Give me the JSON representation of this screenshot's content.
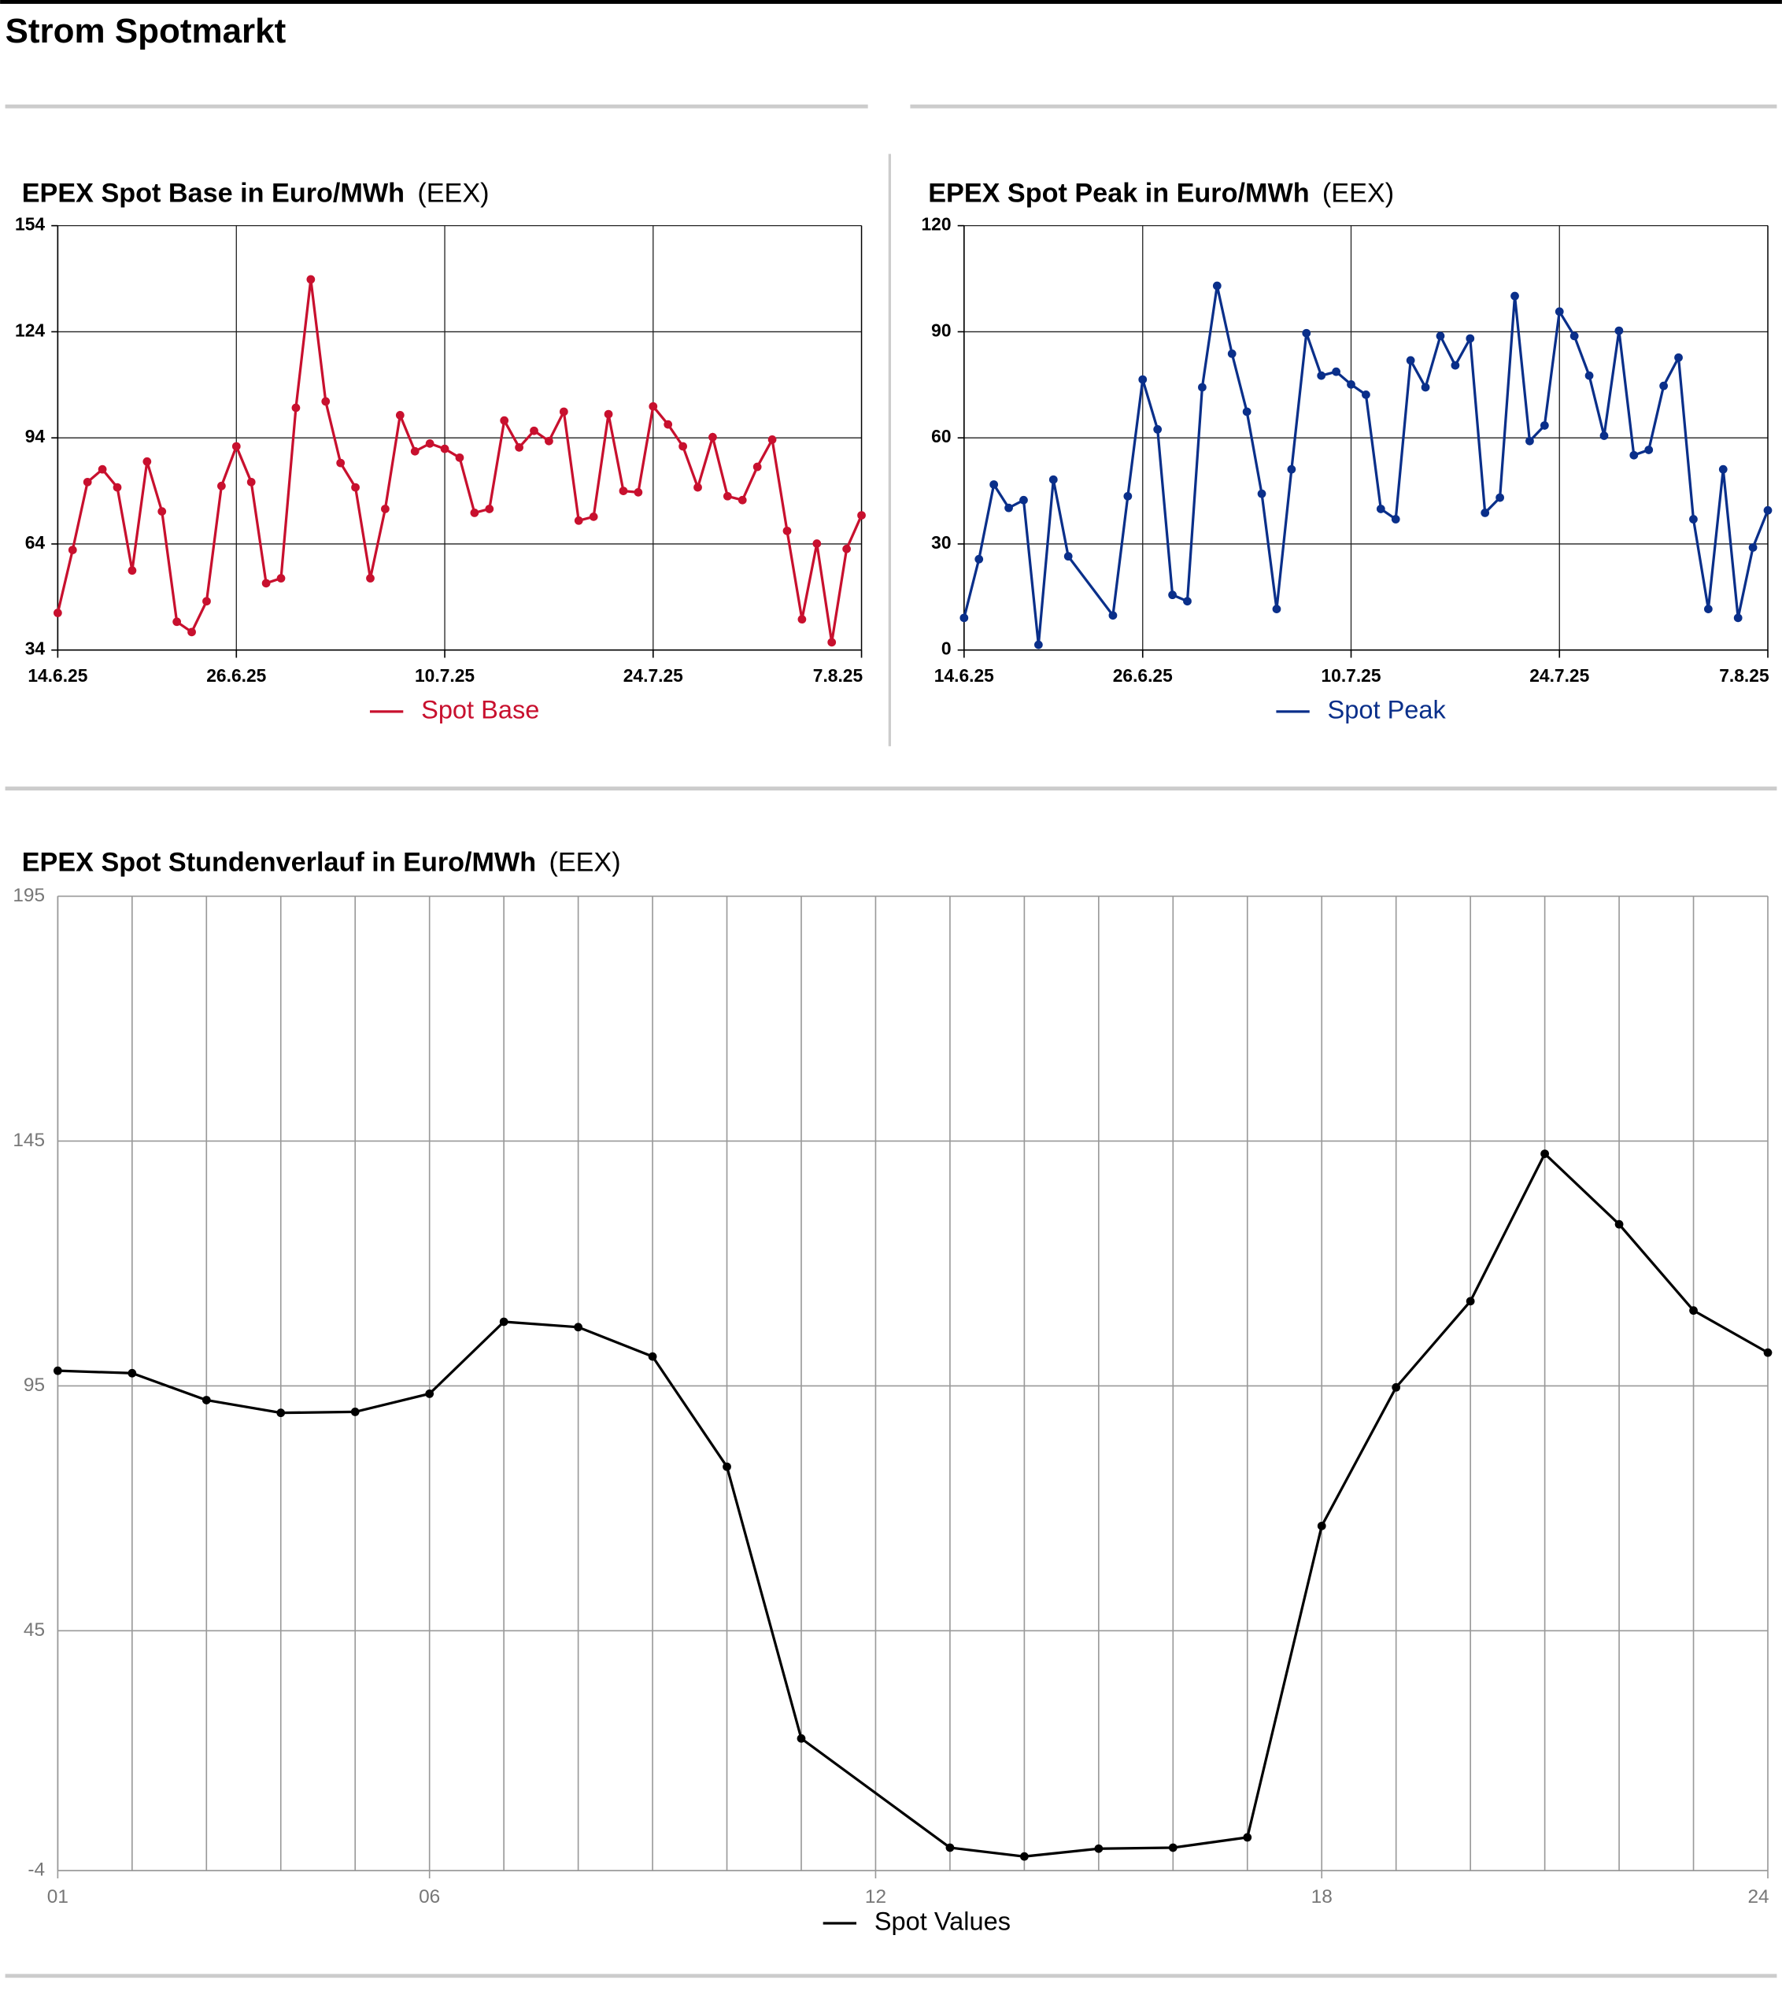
{
  "header": {
    "title": "Strom Spotmarkt"
  },
  "chart_data": [
    {
      "type": "line",
      "title": "EPEX Spot Base in Euro/MWh",
      "subtitle": "(EEX)",
      "x": [
        "14.6.25",
        "15.6.25",
        "16.6.25",
        "17.6.25",
        "18.6.25",
        "19.6.25",
        "20.6.25",
        "21.6.25",
        "22.6.25",
        "23.6.25",
        "24.6.25",
        "25.6.25",
        "26.6.25",
        "27.6.25",
        "28.6.25",
        "29.6.25",
        "30.6.25",
        "1.7.25",
        "2.7.25",
        "3.7.25",
        "4.7.25",
        "5.7.25",
        "6.7.25",
        "7.7.25",
        "8.7.25",
        "9.7.25",
        "10.7.25",
        "11.7.25",
        "12.7.25",
        "13.7.25",
        "14.7.25",
        "15.7.25",
        "16.7.25",
        "17.7.25",
        "18.7.25",
        "19.7.25",
        "20.7.25",
        "21.7.25",
        "22.7.25",
        "23.7.25",
        "24.7.25",
        "25.7.25",
        "26.7.25",
        "27.7.25",
        "28.7.25",
        "29.7.25",
        "30.7.25",
        "31.7.25",
        "1.8.25",
        "2.8.25",
        "3.8.25",
        "4.8.25",
        "5.8.25",
        "6.8.25",
        "7.8.25"
      ],
      "series": [
        {
          "name": "Spot Base",
          "color": "#c8102e",
          "values": [
            44.5,
            62.3,
            81.5,
            85.1,
            80,
            56.5,
            87.3,
            73.2,
            42,
            39.1,
            47.8,
            80.4,
            91.6,
            81.5,
            52.9,
            54.3,
            102.5,
            138.8,
            104.3,
            86.9,
            80,
            54.3,
            73.9,
            100.4,
            90.2,
            92.4,
            90.9,
            88.4,
            72.8,
            73.9,
            98.9,
            91.3,
            96,
            93.1,
            101.4,
            70.6,
            71.7,
            100.7,
            79,
            78.6,
            102.9,
            97.8,
            91.6,
            80,
            94.2,
            77.5,
            76.4,
            85.8,
            93.5,
            67.7,
            42.7,
            64.1,
            36.2,
            62.6,
            72.1
          ]
        }
      ],
      "xlim": [
        "14.6.25",
        "7.8.25"
      ],
      "xticks": [
        "14.6.25",
        "26.6.25",
        "10.7.25",
        "24.7.25",
        "7.8.25"
      ],
      "ylim": [
        34,
        154
      ],
      "yticks": [
        34,
        64,
        94,
        124,
        154
      ],
      "grid": true,
      "legend": "bottom"
    },
    {
      "type": "line",
      "title": "EPEX Spot Peak in Euro/MWh",
      "subtitle": "(EEX)",
      "x": [
        "14.6.25",
        "15.6.25",
        "16.6.25",
        "17.6.25",
        "18.6.25",
        "19.6.25",
        "20.6.25",
        "21.6.25",
        "24.6.25",
        "25.6.25",
        "26.6.25",
        "27.6.25",
        "28.6.25",
        "29.6.25",
        "30.6.25",
        "1.7.25",
        "2.7.25",
        "3.7.25",
        "4.7.25",
        "5.7.25",
        "6.7.25",
        "7.7.25",
        "8.7.25",
        "9.7.25",
        "10.7.25",
        "11.7.25",
        "12.7.25",
        "13.7.25",
        "14.7.25",
        "15.7.25",
        "16.7.25",
        "17.7.25",
        "18.7.25",
        "19.7.25",
        "20.7.25",
        "21.7.25",
        "22.7.25",
        "23.7.25",
        "24.7.25",
        "25.7.25",
        "26.7.25",
        "27.7.25",
        "28.7.25",
        "29.7.25",
        "30.7.25",
        "31.7.25",
        "1.8.25",
        "2.8.25",
        "3.8.25",
        "4.8.25",
        "5.8.25",
        "6.8.25",
        "7.8.25"
      ],
      "series": [
        {
          "name": "Spot Peak",
          "color": "#0a2f8a",
          "values": [
            9.1,
            25.7,
            46.8,
            40.2,
            42.4,
            1.5,
            48.2,
            26.5,
            9.8,
            43.5,
            76.5,
            62.4,
            15.6,
            13.8,
            74.3,
            103,
            83.8,
            67.4,
            44.2,
            11.6,
            51.1,
            89.6,
            77.6,
            78.7,
            75.1,
            72.2,
            39.9,
            37,
            81.9,
            74.3,
            88.8,
            80.5,
            88.1,
            38.8,
            43.1,
            100.1,
            59.1,
            63.5,
            95.7,
            88.8,
            77.6,
            60.6,
            90.3,
            55.1,
            56.6,
            74.7,
            82.7,
            37,
            11.6,
            51.1,
            9.1,
            29,
            39.5
          ]
        }
      ],
      "xlim": [
        "14.6.25",
        "7.8.25"
      ],
      "xticks": [
        "14.6.25",
        "26.6.25",
        "10.7.25",
        "24.7.25",
        "7.8.25"
      ],
      "ylim": [
        0,
        120
      ],
      "yticks": [
        0,
        30,
        60,
        90,
        120
      ],
      "grid": true,
      "legend": "bottom"
    },
    {
      "type": "line",
      "title": "EPEX Spot Stundenverlauf in Euro/MWh",
      "subtitle": "(EEX)",
      "x": [
        1,
        2,
        3,
        4,
        5,
        6,
        7,
        8,
        9,
        10,
        11,
        13,
        14,
        15,
        16,
        17,
        18,
        19,
        20,
        21,
        22,
        23,
        24
      ],
      "series": [
        {
          "name": "Spot Values",
          "color": "#000000",
          "values": [
            98.1,
            97.6,
            92.1,
            89.5,
            89.7,
            93.4,
            108.1,
            107,
            101,
            78.5,
            23,
            0.7,
            -1.1,
            0.5,
            0.7,
            2.8,
            66.4,
            94.7,
            112.3,
            142.4,
            128,
            110.4,
            101.8
          ]
        }
      ],
      "xlim": [
        1,
        24
      ],
      "xticks": [
        {
          "value": 1,
          "label": "01"
        },
        {
          "value": 6,
          "label": "06"
        },
        {
          "value": 12,
          "label": "12"
        },
        {
          "value": 18,
          "label": "18"
        },
        {
          "value": 24,
          "label": "24"
        }
      ],
      "ylim": [
        -4,
        195
      ],
      "yticks": [
        -4,
        45,
        95,
        145,
        195
      ],
      "grid": true,
      "legend": "bottom"
    }
  ]
}
